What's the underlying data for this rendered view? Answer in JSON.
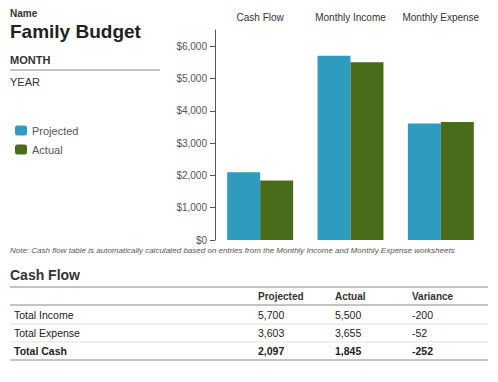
{
  "chart_data": {
    "type": "bar",
    "title": "Family Budget",
    "annotations": [
      "Name",
      "MONTH",
      "YEAR",
      "Note: Cash flow table is automatically calculated based on entries from the Monthly Income and Monthly Expense worksheets"
    ],
    "categories": [
      "Cash Flow",
      "Monthly Income",
      "Monthly Expense"
    ],
    "series": [
      {
        "name": "Projected",
        "color": "#2E9BBF",
        "values": [
          2097,
          5700,
          3603
        ]
      },
      {
        "name": "Actual",
        "color": "#4A6B1A",
        "values": [
          1845,
          5500,
          3655
        ]
      }
    ],
    "ylim": [
      0,
      6500
    ],
    "yticks": [
      {
        "value": 0,
        "label": "$0"
      },
      {
        "value": 1000,
        "label": "$1,000"
      },
      {
        "value": 2000,
        "label": "$2,000"
      },
      {
        "value": 3000,
        "label": "$3,000"
      },
      {
        "value": 4000,
        "label": "$4,000"
      },
      {
        "value": 5000,
        "label": "$5,000"
      },
      {
        "value": 6000,
        "label": "$6,000"
      }
    ],
    "grid": false,
    "legend": "left",
    "table": {
      "title": "Cash Flow",
      "headers": [
        "Projected",
        "Actual",
        "Variance"
      ],
      "rows": [
        [
          "Total Income",
          "5,700",
          "5,500",
          "-200"
        ],
        [
          "Total Expense",
          "3,603",
          "3,655",
          "-52"
        ],
        [
          "Total Cash",
          "2,097",
          "1,845",
          "-252"
        ]
      ]
    }
  }
}
